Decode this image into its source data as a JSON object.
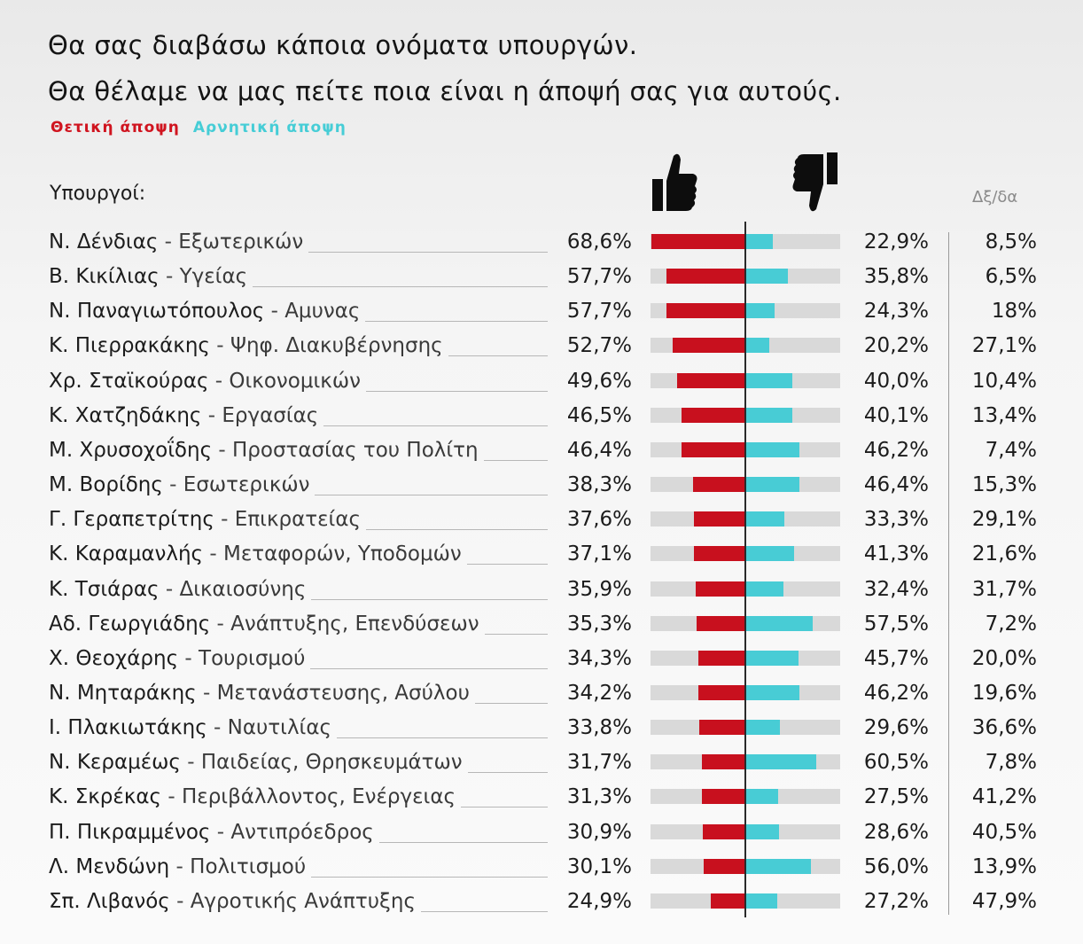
{
  "title_line1": "Θα σας διαβάσω κάποια ονόματα υπουργών.",
  "title_line2": "Θα θέλαμε να μας πείτε ποια είναι η άποψή σας για αυτούς.",
  "legend": {
    "positive": "Θετική άποψη",
    "negative": "Αρνητική άποψη"
  },
  "colors": {
    "positive": "#c8101e",
    "negative": "#48ccd5",
    "track": "#d9d9d9"
  },
  "icons": {
    "positive": "thumbs-up-icon",
    "negative": "thumbs-down-icon"
  },
  "header": {
    "ministers": "Υπουργοί:",
    "dkna": "Δξ/δα"
  },
  "chart_data": {
    "type": "bar",
    "title": "Θα σας διαβάσω κάποια ονόματα υπουργών. Θα θέλαμε να μας πείτε ποια είναι η άποψή σας για αυτούς.",
    "xlim": [
      0,
      100
    ],
    "rows": [
      {
        "name": "Ν. Δένδιας",
        "dept": "Εξωτερικών",
        "positive": 68.6,
        "negative": 22.9,
        "dkna": 8.5,
        "pos_label": "68,6%",
        "neg_label": "22,9%",
        "dk_label": "8,5%"
      },
      {
        "name": "Β. Κικίλιας",
        "dept": "Υγείας",
        "positive": 57.7,
        "negative": 35.8,
        "dkna": 6.5,
        "pos_label": "57,7%",
        "neg_label": "35,8%",
        "dk_label": "6,5%"
      },
      {
        "name": "Ν. Παναγιωτόπουλος",
        "dept": "Αμυνας",
        "positive": 57.7,
        "negative": 24.3,
        "dkna": 18,
        "pos_label": "57,7%",
        "neg_label": "24,3%",
        "dk_label": "18%"
      },
      {
        "name": "Κ. Πιερρακάκης",
        "dept": "Ψηφ. Διακυβέρνησης",
        "positive": 52.7,
        "negative": 20.2,
        "dkna": 27.1,
        "pos_label": "52,7%",
        "neg_label": "20,2%",
        "dk_label": "27,1%"
      },
      {
        "name": "Χρ. Σταϊκούρας",
        "dept": "Οικονομικών",
        "positive": 49.6,
        "negative": 40.0,
        "dkna": 10.4,
        "pos_label": "49,6%",
        "neg_label": "40,0%",
        "dk_label": "10,4%"
      },
      {
        "name": "Κ. Χατζηδάκης",
        "dept": "Εργασίας",
        "positive": 46.5,
        "negative": 40.1,
        "dkna": 13.4,
        "pos_label": "46,5%",
        "neg_label": "40,1%",
        "dk_label": "13,4%"
      },
      {
        "name": "Μ. Χρυσοχοΐδης",
        "dept": "Προστασίας του Πολίτη",
        "positive": 46.4,
        "negative": 46.2,
        "dkna": 7.4,
        "pos_label": "46,4%",
        "neg_label": "46,2%",
        "dk_label": "7,4%"
      },
      {
        "name": "Μ. Βορίδης",
        "dept": "Εσωτερικών",
        "positive": 38.3,
        "negative": 46.4,
        "dkna": 15.3,
        "pos_label": "38,3%",
        "neg_label": "46,4%",
        "dk_label": "15,3%"
      },
      {
        "name": "Γ. Γεραπετρίτης",
        "dept": "Επικρατείας",
        "positive": 37.6,
        "negative": 33.3,
        "dkna": 29.1,
        "pos_label": "37,6%",
        "neg_label": "33,3%",
        "dk_label": "29,1%"
      },
      {
        "name": "Κ. Καραμανλής",
        "dept": "Μεταφορών, Υποδομών",
        "positive": 37.1,
        "negative": 41.3,
        "dkna": 21.6,
        "pos_label": "37,1%",
        "neg_label": "41,3%",
        "dk_label": "21,6%"
      },
      {
        "name": "Κ. Τσιάρας",
        "dept": "Δικαιοσύνης",
        "positive": 35.9,
        "negative": 32.4,
        "dkna": 31.7,
        "pos_label": "35,9%",
        "neg_label": "32,4%",
        "dk_label": "31,7%"
      },
      {
        "name": "Αδ. Γεωργιάδης",
        "dept": "Ανάπτυξης, Επενδύσεων",
        "positive": 35.3,
        "negative": 57.5,
        "dkna": 7.2,
        "pos_label": "35,3%",
        "neg_label": "57,5%",
        "dk_label": "7,2%"
      },
      {
        "name": "Χ. Θεοχάρης",
        "dept": "Τουρισμού",
        "positive": 34.3,
        "negative": 45.7,
        "dkna": 20.0,
        "pos_label": "34,3%",
        "neg_label": "45,7%",
        "dk_label": "20,0%"
      },
      {
        "name": "Ν. Μηταράκης",
        "dept": "Μετανάστευσης, Ασύλου",
        "positive": 34.2,
        "negative": 46.2,
        "dkna": 19.6,
        "pos_label": "34,2%",
        "neg_label": "46,2%",
        "dk_label": "19,6%"
      },
      {
        "name": "Ι. Πλακιωτάκης",
        "dept": "Ναυτιλίας",
        "positive": 33.8,
        "negative": 29.6,
        "dkna": 36.6,
        "pos_label": "33,8%",
        "neg_label": "29,6%",
        "dk_label": "36,6%"
      },
      {
        "name": "Ν. Κεραμέως",
        "dept": "Παιδείας, Θρησκευμάτων",
        "positive": 31.7,
        "negative": 60.5,
        "dkna": 7.8,
        "pos_label": "31,7%",
        "neg_label": "60,5%",
        "dk_label": "7,8%"
      },
      {
        "name": "Κ. Σκρέκας",
        "dept": "Περιβάλλοντος, Ενέργειας",
        "positive": 31.3,
        "negative": 27.5,
        "dkna": 41.2,
        "pos_label": "31,3%",
        "neg_label": "27,5%",
        "dk_label": "41,2%"
      },
      {
        "name": "Π. Πικραμμένος",
        "dept": "Αντιπρόεδρος",
        "positive": 30.9,
        "negative": 28.6,
        "dkna": 40.5,
        "pos_label": "30,9%",
        "neg_label": "28,6%",
        "dk_label": "40,5%"
      },
      {
        "name": "Λ. Μενδώνη",
        "dept": "Πολιτισμού",
        "positive": 30.1,
        "negative": 56.0,
        "dkna": 13.9,
        "pos_label": "30,1%",
        "neg_label": "56,0%",
        "dk_label": "13,9%"
      },
      {
        "name": "Σπ. Λιβανός",
        "dept": "Αγροτικής Ανάπτυξης",
        "positive": 24.9,
        "negative": 27.2,
        "dkna": 47.9,
        "pos_label": "24,9%",
        "neg_label": "27,2%",
        "dk_label": "47,9%"
      }
    ]
  }
}
